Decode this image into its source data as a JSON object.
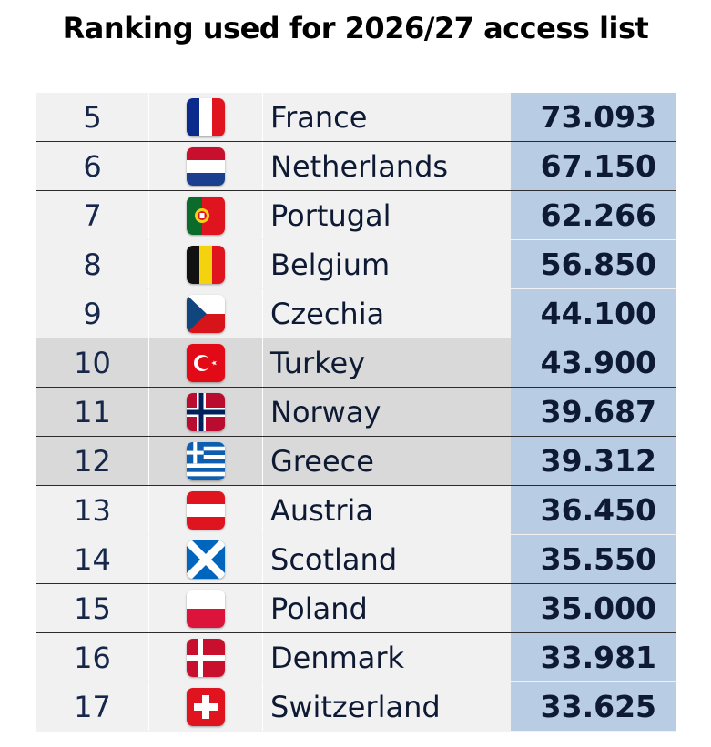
{
  "title": "Ranking used for 2026/27 access list",
  "chart_data": {
    "type": "table",
    "columns": [
      "rank",
      "flag",
      "country",
      "coefficient"
    ],
    "rows": [
      {
        "rank": "5",
        "country": "France",
        "coefficient": "73.093",
        "flag_icon": "france-flag-icon"
      },
      {
        "rank": "6",
        "country": "Netherlands",
        "coefficient": "67.150",
        "flag_icon": "netherlands-flag-icon"
      },
      {
        "rank": "7",
        "country": "Portugal",
        "coefficient": "62.266",
        "flag_icon": "portugal-flag-icon"
      },
      {
        "rank": "8",
        "country": "Belgium",
        "coefficient": "56.850",
        "flag_icon": "belgium-flag-icon"
      },
      {
        "rank": "9",
        "country": "Czechia",
        "coefficient": "44.100",
        "flag_icon": "czechia-flag-icon"
      },
      {
        "rank": "10",
        "country": "Turkey",
        "coefficient": "43.900",
        "flag_icon": "turkey-flag-icon"
      },
      {
        "rank": "11",
        "country": "Norway",
        "coefficient": "39.687",
        "flag_icon": "norway-flag-icon"
      },
      {
        "rank": "12",
        "country": "Greece",
        "coefficient": "39.312",
        "flag_icon": "greece-flag-icon"
      },
      {
        "rank": "13",
        "country": "Austria",
        "coefficient": "36.450",
        "flag_icon": "austria-flag-icon"
      },
      {
        "rank": "14",
        "country": "Scotland",
        "coefficient": "35.550",
        "flag_icon": "scotland-flag-icon"
      },
      {
        "rank": "15",
        "country": "Poland",
        "coefficient": "35.000",
        "flag_icon": "poland-flag-icon"
      },
      {
        "rank": "16",
        "country": "Denmark",
        "coefficient": "33.981",
        "flag_icon": "denmark-flag-icon"
      },
      {
        "rank": "17",
        "country": "Switzerland",
        "coefficient": "33.625",
        "flag_icon": "switzerland-flag-icon"
      }
    ]
  },
  "colors": {
    "row_background": "#f1f1f1",
    "highlight_row_background": "#d9d9d9",
    "score_column_background": "#b8cce4",
    "text": "#0e1a33"
  }
}
